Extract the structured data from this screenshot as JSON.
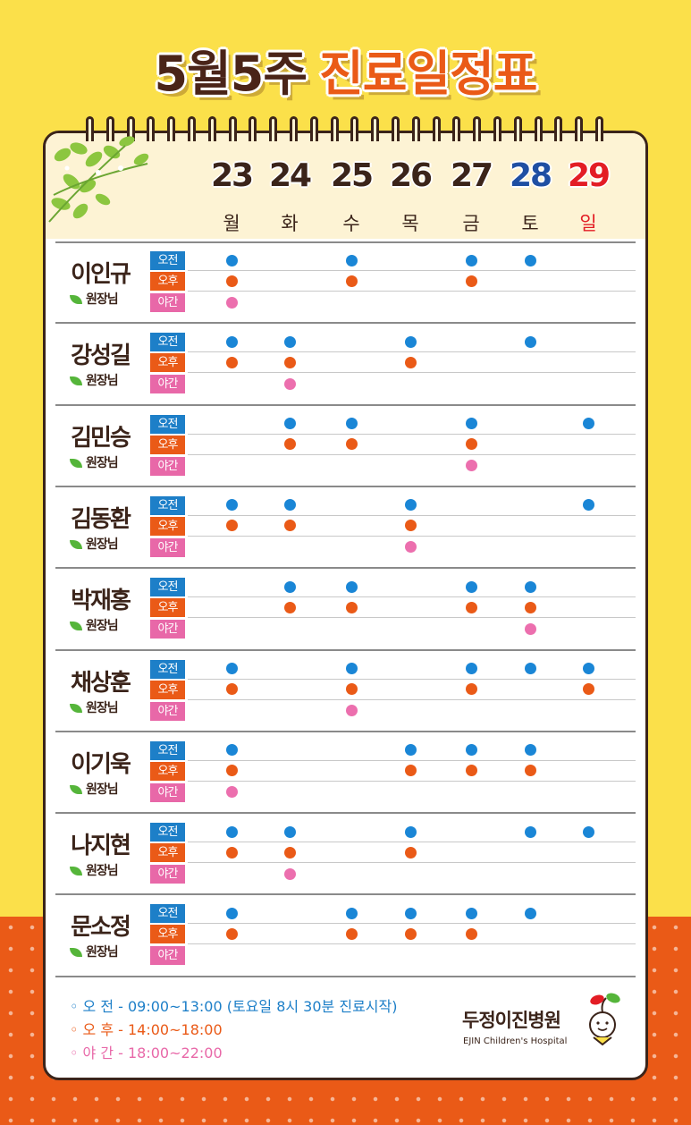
{
  "title": {
    "week": "5월5주",
    "label": "진료일정표"
  },
  "days": [
    {
      "num": "23",
      "name": "월",
      "color": "#3b241a"
    },
    {
      "num": "24",
      "name": "화",
      "color": "#3b241a"
    },
    {
      "num": "25",
      "name": "수",
      "color": "#3b241a"
    },
    {
      "num": "26",
      "name": "목",
      "color": "#3b241a"
    },
    {
      "num": "27",
      "name": "금",
      "color": "#3b241a"
    },
    {
      "num": "28",
      "name": "토",
      "color": "#1f4fa3"
    },
    {
      "num": "29",
      "name": "일",
      "color": "#e31d25"
    }
  ],
  "session_labels": {
    "am": "오전",
    "pm": "오후",
    "night": "야간"
  },
  "doctor_title": "원장님",
  "doctors": [
    {
      "name": "이인규",
      "am": [
        1,
        0,
        1,
        0,
        1,
        1,
        0
      ],
      "pm": [
        1,
        0,
        1,
        0,
        1,
        0,
        0
      ],
      "night": [
        1,
        0,
        0,
        0,
        0,
        0,
        0
      ]
    },
    {
      "name": "강성길",
      "am": [
        1,
        1,
        0,
        1,
        0,
        1,
        0
      ],
      "pm": [
        1,
        1,
        0,
        1,
        0,
        0,
        0
      ],
      "night": [
        0,
        1,
        0,
        0,
        0,
        0,
        0
      ]
    },
    {
      "name": "김민승",
      "am": [
        0,
        1,
        1,
        0,
        1,
        0,
        1
      ],
      "pm": [
        0,
        1,
        1,
        0,
        1,
        0,
        0
      ],
      "night": [
        0,
        0,
        0,
        0,
        1,
        0,
        0
      ]
    },
    {
      "name": "김동환",
      "am": [
        1,
        1,
        0,
        1,
        0,
        0,
        1
      ],
      "pm": [
        1,
        1,
        0,
        1,
        0,
        0,
        0
      ],
      "night": [
        0,
        0,
        0,
        1,
        0,
        0,
        0
      ]
    },
    {
      "name": "박재홍",
      "am": [
        0,
        1,
        1,
        0,
        1,
        1,
        0
      ],
      "pm": [
        0,
        1,
        1,
        0,
        1,
        1,
        0
      ],
      "night": [
        0,
        0,
        0,
        0,
        0,
        1,
        0
      ]
    },
    {
      "name": "채상훈",
      "am": [
        1,
        0,
        1,
        0,
        1,
        1,
        1
      ],
      "pm": [
        1,
        0,
        1,
        0,
        1,
        0,
        1
      ],
      "night": [
        0,
        0,
        1,
        0,
        0,
        0,
        0
      ]
    },
    {
      "name": "이기욱",
      "am": [
        1,
        0,
        0,
        1,
        1,
        1,
        0
      ],
      "pm": [
        1,
        0,
        0,
        1,
        1,
        1,
        0
      ],
      "night": [
        1,
        0,
        0,
        0,
        0,
        0,
        0
      ]
    },
    {
      "name": "나지현",
      "am": [
        1,
        1,
        0,
        1,
        0,
        1,
        1
      ],
      "pm": [
        1,
        1,
        0,
        1,
        0,
        0,
        0
      ],
      "night": [
        0,
        1,
        0,
        0,
        0,
        0,
        0
      ]
    },
    {
      "name": "문소정",
      "am": [
        1,
        0,
        1,
        1,
        1,
        1,
        0
      ],
      "pm": [
        1,
        0,
        1,
        1,
        1,
        0,
        0
      ],
      "night": [
        0,
        0,
        0,
        0,
        0,
        0,
        0
      ]
    }
  ],
  "legend": {
    "am": "◦ 오 전 - 09:00~13:00 (토요일 8시 30분 진료시작)",
    "pm": "◦ 오 후 - 14:00~18:00",
    "night": "◦ 야 간 - 18:00~22:00"
  },
  "hospital": {
    "name_kr": "두정이진병원",
    "name_en": "EJIN Children's Hospital"
  },
  "colors": {
    "am": "#1a86d6",
    "pm": "#ea5a17",
    "night": "#ec6fae",
    "background": "#fbe04a",
    "accent": "#ea5a17"
  },
  "icons": {
    "decoration": "leaf-branch-icon",
    "logo": "sprout-child-logo-icon"
  }
}
